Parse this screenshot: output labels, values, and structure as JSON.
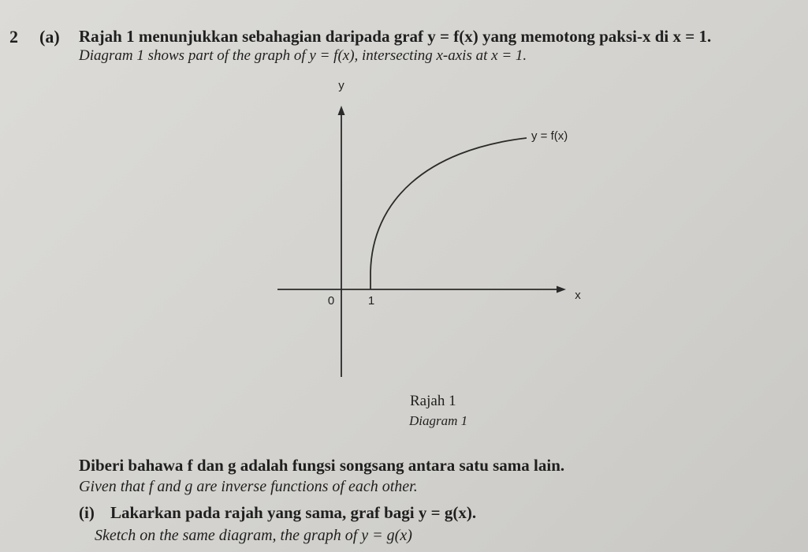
{
  "question": {
    "number": "2",
    "part": "(a)",
    "malay_intro": "Rajah 1 menunjukkan sebahagian daripada graf y = f(x) yang memotong paksi-x di x = 1.",
    "english_intro": "Diagram 1 shows part of the graph of y = f(x), intersecting x-axis at x = 1."
  },
  "diagram": {
    "y_axis_label": "y",
    "x_axis_label": "x",
    "curve_label": "y = f(x)",
    "origin_label": "0",
    "x_tick_label": "1",
    "caption_malay": "Rajah 1",
    "caption_english": "Diagram 1"
  },
  "given": {
    "malay": "Diberi bahawa f dan g adalah fungsi songsang antara satu sama lain.",
    "english": "Given that f and g are inverse functions of each other."
  },
  "subquestion": {
    "number": "(i)",
    "malay": "Lakarkan pada rajah yang sama, graf bagi y = g(x).",
    "english": "Sketch on the same diagram, the graph of y = g(x)"
  }
}
